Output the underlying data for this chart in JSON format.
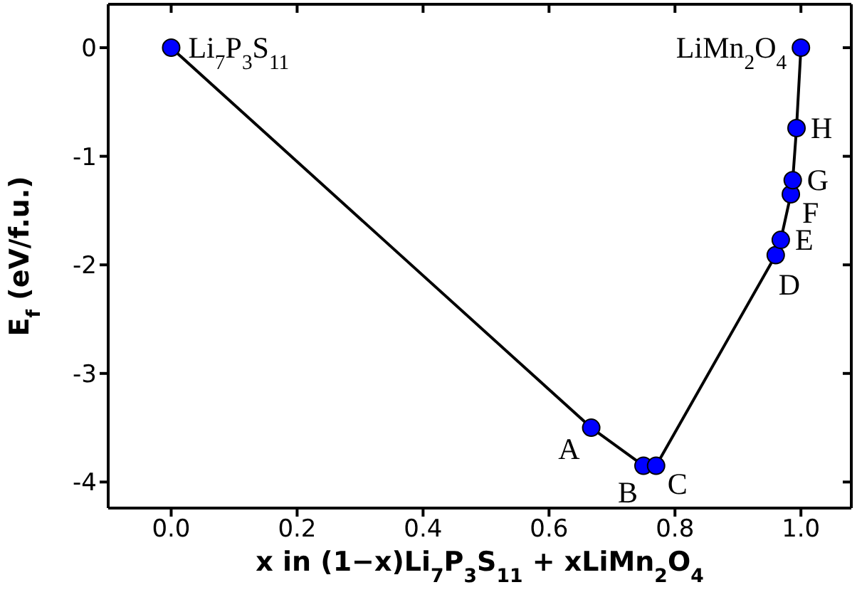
{
  "chart_data": {
    "type": "line",
    "xlabel": "x in (1−x)Li$_{7}$P$_{3}$S$_{11}$ + xLiMn$_{2}$O$_{4}$",
    "ylabel": "E$_{f}$ (eV/f.u.)",
    "x": [
      0,
      0.667,
      0.75,
      0.77,
      0.96,
      0.968,
      0.984,
      0.987,
      0.993,
      1
    ],
    "series": [
      {
        "color": "#0000ff",
        "values": [
          0,
          -3.5,
          -3.85,
          -3.85,
          -1.91,
          -1.77,
          -1.35,
          -1.22,
          -0.74,
          0
        ]
      }
    ],
    "marker": "circle",
    "line_style": "solid",
    "grid": false,
    "legend": false,
    "xlim": [
      -0.1,
      1.08
    ],
    "ylim": [
      -4.24,
      0.4
    ],
    "xticks": [
      {
        "value": 0,
        "label": "0.0"
      },
      0.2,
      0.4,
      0.6,
      0.8,
      {
        "value": 1,
        "label": "1.0"
      }
    ],
    "yticks": [
      -4,
      -3,
      -2,
      -1,
      0
    ],
    "annotations": [
      {
        "text": "Li$_{7}$P$_{3}$S$_{11}$",
        "x": 0,
        "y": 0
      },
      {
        "text": "LiMn$_{2}$O$_{4}$",
        "x": 1,
        "y": 0
      },
      {
        "text": "H",
        "x": 0.993,
        "y": -0.74
      },
      {
        "text": "G",
        "x": 0.987,
        "y": -1.22
      },
      {
        "text": "F",
        "x": 0.984,
        "y": -1.35
      },
      {
        "text": "E",
        "x": 0.968,
        "y": -1.77
      },
      {
        "text": "D",
        "x": 0.96,
        "y": -1.91
      },
      {
        "text": "A",
        "x": 0.667,
        "y": -3.5
      },
      {
        "text": "B",
        "x": 0.75,
        "y": -3.85
      },
      {
        "text": "C",
        "x": 0.77,
        "y": -3.85
      }
    ]
  }
}
